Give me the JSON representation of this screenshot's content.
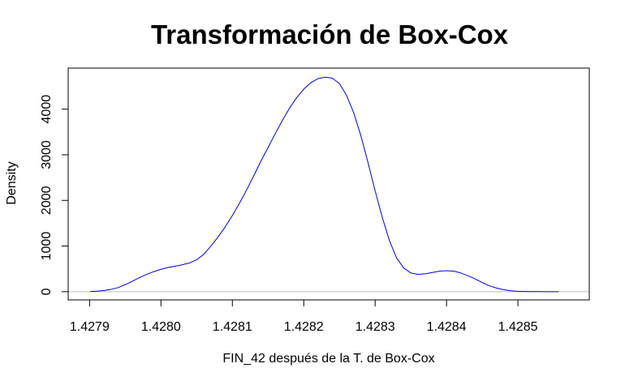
{
  "chart_data": {
    "type": "line",
    "title": "Transformación de Box-Cox",
    "xlabel": "FIN_42 después de la T. de Box-Cox",
    "ylabel": "Density",
    "xlim": [
      1.42787,
      1.4286
    ],
    "ylim": [
      -180,
      4900
    ],
    "x_ticks": [
      1.4279,
      1.428,
      1.4281,
      1.4282,
      1.4283,
      1.4284,
      1.4285
    ],
    "x_tick_labels": [
      "1.4279",
      "1.4280",
      "1.4281",
      "1.4282",
      "1.4283",
      "1.4284",
      "1.4285"
    ],
    "y_ticks": [
      0,
      1000,
      2000,
      3000,
      4000
    ],
    "y_tick_labels": [
      "0",
      "1000",
      "2000",
      "3000",
      "4000"
    ],
    "grid": false,
    "baseline": 0,
    "colors": {
      "line": "#0000cc",
      "baseline": "#bebebe",
      "axis": "#000000"
    },
    "series": [
      {
        "x": [
          1.427901,
          1.42791,
          1.42792,
          1.42793,
          1.42794,
          1.42795,
          1.42796,
          1.42797,
          1.42798,
          1.42799,
          1.428,
          1.42801,
          1.42802,
          1.42803,
          1.42804,
          1.42805,
          1.42806,
          1.42807,
          1.42808,
          1.42809,
          1.4281,
          1.42811,
          1.42812,
          1.42813,
          1.42814,
          1.42815,
          1.42816,
          1.42817,
          1.42818,
          1.42819,
          1.4282,
          1.42821,
          1.42822,
          1.42823,
          1.42824,
          1.42825,
          1.42826,
          1.42827,
          1.42828,
          1.42829,
          1.4283,
          1.42831,
          1.42832,
          1.42833,
          1.42834,
          1.42835,
          1.42836,
          1.42837,
          1.42838,
          1.42839,
          1.4284,
          1.42841,
          1.42842,
          1.42843,
          1.42844,
          1.42845,
          1.42846,
          1.42847,
          1.42848,
          1.42849,
          1.4285,
          1.42851,
          1.42852,
          1.42853,
          1.42854,
          1.42855,
          1.428557
        ],
        "y": [
          5,
          12,
          25,
          50,
          90,
          155,
          230,
          310,
          380,
          440,
          490,
          530,
          560,
          590,
          630,
          700,
          820,
          1000,
          1200,
          1420,
          1670,
          1940,
          2230,
          2540,
          2860,
          3160,
          3460,
          3750,
          4020,
          4250,
          4440,
          4580,
          4670,
          4700,
          4680,
          4560,
          4300,
          3920,
          3420,
          2830,
          2210,
          1630,
          1120,
          740,
          520,
          410,
          380,
          390,
          420,
          450,
          460,
          450,
          410,
          350,
          280,
          200,
          130,
          80,
          45,
          20,
          8,
          4,
          2,
          1,
          0.5,
          0.2,
          0.1
        ]
      }
    ]
  }
}
